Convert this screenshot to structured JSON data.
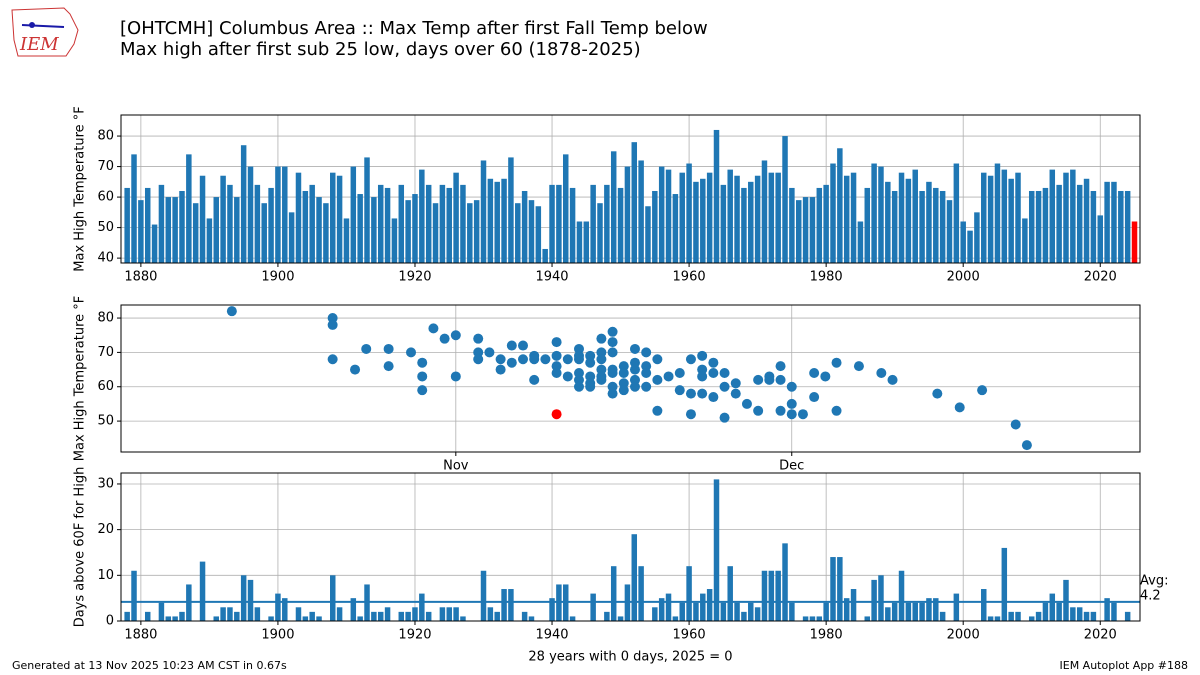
{
  "title": "[OHTCMH] Columbus Area :: Max Temp after first Fall Temp below",
  "subtitle": "Max high after first sub 25 low, days over 60 (1878-2025)",
  "logo": "IEM",
  "footer_left": "Generated at 13 Nov 2025 10:23 AM CST in 0.67s",
  "footer_right": "IEM Autoplot App #188",
  "chart_data": [
    {
      "type": "bar",
      "ylabel": "Max High Temperature °F",
      "color": "#1f77b4",
      "highlight_color": "#ff0000",
      "grid": true,
      "xlim": [
        1877.1,
        2025.8
      ],
      "xticks": [
        1880,
        1900,
        1920,
        1940,
        1960,
        1980,
        2000,
        2020
      ],
      "ylim": [
        38.4,
        86.9
      ],
      "yticks": [
        40,
        50,
        60,
        70,
        80
      ],
      "x": [
        1878,
        1879,
        1880,
        1881,
        1882,
        1883,
        1884,
        1885,
        1886,
        1887,
        1888,
        1889,
        1890,
        1891,
        1892,
        1893,
        1894,
        1895,
        1896,
        1897,
        1898,
        1899,
        1900,
        1901,
        1902,
        1903,
        1904,
        1905,
        1906,
        1907,
        1908,
        1909,
        1910,
        1911,
        1912,
        1913,
        1914,
        1915,
        1916,
        1917,
        1918,
        1919,
        1920,
        1921,
        1922,
        1923,
        1924,
        1925,
        1926,
        1927,
        1928,
        1929,
        1930,
        1931,
        1932,
        1933,
        1934,
        1935,
        1936,
        1937,
        1938,
        1939,
        1940,
        1941,
        1942,
        1943,
        1944,
        1945,
        1946,
        1947,
        1948,
        1949,
        1950,
        1951,
        1952,
        1953,
        1954,
        1955,
        1956,
        1957,
        1958,
        1959,
        1960,
        1961,
        1962,
        1963,
        1964,
        1965,
        1966,
        1967,
        1968,
        1969,
        1970,
        1971,
        1972,
        1973,
        1974,
        1975,
        1976,
        1977,
        1978,
        1979,
        1980,
        1981,
        1982,
        1983,
        1984,
        1985,
        1986,
        1987,
        1988,
        1989,
        1990,
        1991,
        1992,
        1993,
        1994,
        1995,
        1996,
        1997,
        1998,
        1999,
        2000,
        2001,
        2002,
        2003,
        2004,
        2005,
        2006,
        2007,
        2008,
        2009,
        2010,
        2011,
        2012,
        2013,
        2014,
        2015,
        2016,
        2017,
        2018,
        2019,
        2020,
        2021,
        2022,
        2023,
        2024,
        2025
      ],
      "values": [
        63,
        74,
        59,
        63,
        51,
        64,
        60,
        60,
        62,
        74,
        58,
        67,
        53,
        60,
        67,
        64,
        60,
        77,
        70,
        64,
        58,
        63,
        70,
        70,
        55,
        68,
        62,
        64,
        60,
        58,
        68,
        67,
        53,
        70,
        61,
        73,
        60,
        64,
        63,
        53,
        64,
        59,
        61,
        69,
        64,
        58,
        64,
        63,
        68,
        64,
        58,
        59,
        72,
        66,
        65,
        66,
        73,
        58,
        62,
        59,
        57,
        43,
        64,
        64,
        74,
        63,
        52,
        52,
        64,
        58,
        64,
        75,
        63,
        70,
        78,
        72,
        57,
        62,
        70,
        69,
        61,
        68,
        71,
        65,
        66,
        68,
        82,
        64,
        69,
        67,
        63,
        65,
        67,
        72,
        68,
        68,
        80,
        63,
        59,
        60,
        60,
        63,
        64,
        71,
        76,
        67,
        68,
        52,
        63,
        71,
        70,
        65,
        62,
        68,
        66,
        69,
        62,
        65,
        63,
        62,
        59,
        71,
        52,
        49,
        55,
        68,
        67,
        71,
        69,
        66,
        68,
        53,
        62,
        62,
        63,
        69,
        64,
        68,
        69,
        64,
        66,
        62,
        54,
        65,
        65,
        62,
        62,
        52
      ]
    },
    {
      "type": "scatter",
      "ylabel": "Max High Temperature °F",
      "grid": true,
      "xlim": [
        275.1,
        366.1
      ],
      "xticks": [
        {
          "value": 305,
          "label": "Nov"
        },
        {
          "value": 335,
          "label": "Dec"
        }
      ],
      "ylim": [
        41.0,
        83.8
      ],
      "yticks": [
        50,
        60,
        70,
        80
      ],
      "series": [
        {
          "color": "#1f77b4",
          "x": [
            285,
            294,
            294,
            294,
            296,
            297,
            299,
            299,
            301,
            302,
            302,
            302,
            303,
            304,
            305,
            305,
            307,
            307,
            307,
            308,
            309,
            309,
            310,
            310,
            311,
            311,
            312,
            312,
            312,
            313,
            314,
            314,
            314,
            314,
            315,
            315,
            316,
            316,
            316,
            316,
            316,
            316,
            317,
            317,
            317,
            317,
            317,
            318,
            318,
            318,
            318,
            318,
            318,
            319,
            319,
            319,
            319,
            319,
            319,
            319,
            320,
            320,
            320,
            320,
            321,
            321,
            321,
            321,
            321,
            322,
            322,
            322,
            322,
            323,
            323,
            323,
            324,
            325,
            325,
            326,
            326,
            326,
            327,
            327,
            327,
            327,
            328,
            328,
            328,
            329,
            329,
            329,
            330,
            330,
            331,
            332,
            332,
            333,
            333,
            334,
            334,
            334,
            335,
            335,
            335,
            336,
            337,
            337,
            338,
            339,
            339,
            341,
            343,
            344,
            348,
            350,
            352,
            355,
            356
          ],
          "values": [
            82,
            80,
            78,
            68,
            65,
            71,
            71,
            66,
            70,
            67,
            63,
            59,
            77,
            74,
            75,
            63,
            74,
            70,
            68,
            70,
            68,
            65,
            72,
            67,
            72,
            68,
            69,
            68,
            62,
            68,
            73,
            69,
            66,
            64,
            68,
            63,
            71,
            69,
            68,
            64,
            62,
            60,
            69,
            67,
            63,
            61,
            60,
            74,
            70,
            68,
            65,
            63,
            62,
            76,
            73,
            70,
            65,
            64,
            60,
            58,
            66,
            64,
            61,
            59,
            71,
            67,
            65,
            62,
            60,
            70,
            66,
            64,
            60,
            68,
            62,
            53,
            63,
            64,
            59,
            68,
            58,
            52,
            69,
            65,
            63,
            58,
            67,
            64,
            57,
            64,
            60,
            51,
            61,
            58,
            55,
            62,
            53,
            63,
            62,
            66,
            62,
            53,
            60,
            55,
            52,
            52,
            64,
            57,
            63,
            67,
            53,
            66,
            64,
            62,
            58,
            54,
            59,
            49,
            43
          ]
        },
        {
          "color": "#ff0000",
          "x": [
            314
          ],
          "values": [
            52
          ]
        }
      ]
    },
    {
      "type": "bar",
      "ylabel": "Days above 60F for High",
      "xlabel": "28 years with 0 days, 2025 = 0",
      "color": "#1f77b4",
      "grid": true,
      "avg_label": "Avg:",
      "avg": 4.2,
      "xlim": [
        1877.1,
        2025.8
      ],
      "xticks": [
        1880,
        1900,
        1920,
        1940,
        1960,
        1980,
        2000,
        2020
      ],
      "ylim": [
        0,
        32.4
      ],
      "yticks": [
        0,
        10,
        20,
        30
      ],
      "x": [
        1878,
        1879,
        1880,
        1881,
        1882,
        1883,
        1884,
        1885,
        1886,
        1887,
        1888,
        1889,
        1890,
        1891,
        1892,
        1893,
        1894,
        1895,
        1896,
        1897,
        1898,
        1899,
        1900,
        1901,
        1902,
        1903,
        1904,
        1905,
        1906,
        1907,
        1908,
        1909,
        1910,
        1911,
        1912,
        1913,
        1914,
        1915,
        1916,
        1917,
        1918,
        1919,
        1920,
        1921,
        1922,
        1923,
        1924,
        1925,
        1926,
        1927,
        1928,
        1929,
        1930,
        1931,
        1932,
        1933,
        1934,
        1935,
        1936,
        1937,
        1938,
        1939,
        1940,
        1941,
        1942,
        1943,
        1944,
        1945,
        1946,
        1947,
        1948,
        1949,
        1950,
        1951,
        1952,
        1953,
        1954,
        1955,
        1956,
        1957,
        1958,
        1959,
        1960,
        1961,
        1962,
        1963,
        1964,
        1965,
        1966,
        1967,
        1968,
        1969,
        1970,
        1971,
        1972,
        1973,
        1974,
        1975,
        1976,
        1977,
        1978,
        1979,
        1980,
        1981,
        1982,
        1983,
        1984,
        1985,
        1986,
        1987,
        1988,
        1989,
        1990,
        1991,
        1992,
        1993,
        1994,
        1995,
        1996,
        1997,
        1998,
        1999,
        2000,
        2001,
        2002,
        2003,
        2004,
        2005,
        2006,
        2007,
        2008,
        2009,
        2010,
        2011,
        2012,
        2013,
        2014,
        2015,
        2016,
        2017,
        2018,
        2019,
        2020,
        2021,
        2022,
        2023,
        2024,
        2025
      ],
      "values": [
        2,
        11,
        0,
        2,
        0,
        4,
        1,
        1,
        2,
        8,
        0,
        13,
        0,
        1,
        3,
        3,
        2,
        10,
        9,
        3,
        0,
        1,
        6,
        5,
        0,
        3,
        1,
        2,
        1,
        0,
        10,
        3,
        0,
        5,
        1,
        8,
        2,
        2,
        3,
        0,
        2,
        2,
        3,
        6,
        2,
        0,
        3,
        3,
        3,
        1,
        0,
        0,
        11,
        3,
        2,
        7,
        7,
        0,
        2,
        1,
        0,
        0,
        5,
        8,
        8,
        1,
        0,
        0,
        6,
        0,
        2,
        12,
        1,
        8,
        19,
        12,
        0,
        3,
        5,
        6,
        1,
        4,
        12,
        4,
        6,
        7,
        31,
        4,
        12,
        4,
        2,
        4,
        3,
        11,
        11,
        11,
        17,
        4,
        0,
        1,
        1,
        1,
        4,
        14,
        14,
        5,
        7,
        0,
        1,
        9,
        10,
        3,
        4,
        11,
        4,
        4,
        4,
        5,
        5,
        2,
        0,
        6,
        0,
        0,
        0,
        7,
        1,
        1,
        16,
        2,
        2,
        0,
        1,
        2,
        4,
        6,
        4,
        9,
        3,
        3,
        2,
        2,
        0,
        5,
        4,
        0,
        2,
        0
      ]
    }
  ]
}
